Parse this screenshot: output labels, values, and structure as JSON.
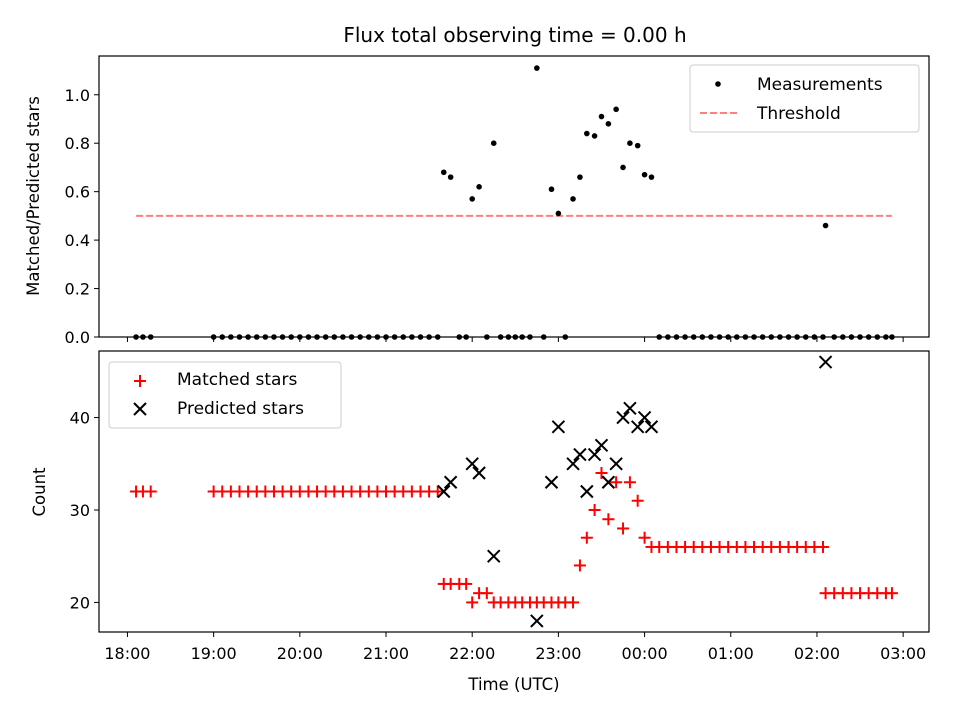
{
  "chart_data": [
    {
      "type": "scatter",
      "title": "Flux total observing time = 0.00 h",
      "ylabel": "Matched/Predicted stars",
      "xlabel": "",
      "ylim": [
        0,
        1.16
      ],
      "yticks": [
        0.0,
        0.2,
        0.4,
        0.6,
        0.8,
        1.0
      ],
      "ytick_labels": [
        "0.0",
        "0.2",
        "0.4",
        "0.6",
        "0.8",
        "1.0"
      ],
      "xlim_hours": [
        17.67,
        27.3
      ],
      "legend_position": "top-right",
      "grid": false,
      "series": [
        {
          "name": "Measurements",
          "kind": "dot",
          "color": "#000000",
          "points": [
            [
              18.1,
              0
            ],
            [
              18.18,
              0
            ],
            [
              18.27,
              0
            ],
            [
              19.0,
              0
            ],
            [
              19.1,
              0
            ],
            [
              19.2,
              0
            ],
            [
              19.3,
              0
            ],
            [
              19.4,
              0
            ],
            [
              19.5,
              0
            ],
            [
              19.6,
              0
            ],
            [
              19.7,
              0
            ],
            [
              19.8,
              0
            ],
            [
              19.9,
              0
            ],
            [
              20.0,
              0
            ],
            [
              20.1,
              0
            ],
            [
              20.2,
              0
            ],
            [
              20.3,
              0
            ],
            [
              20.4,
              0
            ],
            [
              20.5,
              0
            ],
            [
              20.6,
              0
            ],
            [
              20.7,
              0
            ],
            [
              20.8,
              0
            ],
            [
              20.9,
              0
            ],
            [
              21.0,
              0
            ],
            [
              21.1,
              0
            ],
            [
              21.2,
              0
            ],
            [
              21.3,
              0
            ],
            [
              21.4,
              0
            ],
            [
              21.5,
              0
            ],
            [
              21.6,
              0
            ],
            [
              21.67,
              0.68
            ],
            [
              21.75,
              0.66
            ],
            [
              21.85,
              0
            ],
            [
              21.93,
              0
            ],
            [
              22.0,
              0.57
            ],
            [
              22.08,
              0.62
            ],
            [
              22.17,
              0
            ],
            [
              22.25,
              0.8
            ],
            [
              22.33,
              0
            ],
            [
              22.42,
              0
            ],
            [
              22.5,
              0
            ],
            [
              22.58,
              0
            ],
            [
              22.67,
              0
            ],
            [
              22.75,
              1.11
            ],
            [
              22.83,
              0
            ],
            [
              22.92,
              0.61
            ],
            [
              23.0,
              0.51
            ],
            [
              23.08,
              0
            ],
            [
              23.17,
              0.57
            ],
            [
              23.25,
              0.66
            ],
            [
              23.33,
              0.84
            ],
            [
              23.42,
              0.83
            ],
            [
              23.5,
              0.91
            ],
            [
              23.58,
              0.88
            ],
            [
              23.67,
              0.94
            ],
            [
              23.75,
              0.7
            ],
            [
              23.83,
              0.8
            ],
            [
              23.92,
              0.79
            ],
            [
              24.0,
              0.67
            ],
            [
              24.08,
              0.66
            ],
            [
              24.17,
              0
            ],
            [
              24.27,
              0
            ],
            [
              24.37,
              0
            ],
            [
              24.47,
              0
            ],
            [
              24.57,
              0
            ],
            [
              24.67,
              0
            ],
            [
              24.77,
              0
            ],
            [
              24.87,
              0
            ],
            [
              24.97,
              0
            ],
            [
              25.07,
              0
            ],
            [
              25.17,
              0
            ],
            [
              25.27,
              0
            ],
            [
              25.37,
              0
            ],
            [
              25.47,
              0
            ],
            [
              25.57,
              0
            ],
            [
              25.67,
              0
            ],
            [
              25.77,
              0
            ],
            [
              25.87,
              0
            ],
            [
              25.97,
              0
            ],
            [
              26.07,
              0
            ],
            [
              26.1,
              0.46
            ],
            [
              26.2,
              0
            ],
            [
              26.3,
              0
            ],
            [
              26.4,
              0
            ],
            [
              26.5,
              0
            ],
            [
              26.6,
              0
            ],
            [
              26.7,
              0
            ],
            [
              26.8,
              0
            ],
            [
              26.87,
              0
            ]
          ]
        },
        {
          "name": "Threshold",
          "kind": "dashed-line",
          "color": "#ff7f7f",
          "points": [
            [
              18.1,
              0.5
            ],
            [
              26.87,
              0.5
            ]
          ]
        }
      ]
    },
    {
      "type": "scatter",
      "title": "",
      "ylabel": "Count",
      "xlabel": "Time (UTC)",
      "ylim": [
        16.8,
        47.2
      ],
      "yticks": [
        20,
        30,
        40
      ],
      "ytick_labels": [
        "20",
        "30",
        "40"
      ],
      "xlim_hours": [
        17.67,
        27.3
      ],
      "xticks_hours": [
        18,
        19,
        20,
        21,
        22,
        23,
        24,
        25,
        26,
        27
      ],
      "xtick_labels": [
        "18:00",
        "19:00",
        "20:00",
        "21:00",
        "22:00",
        "23:00",
        "00:00",
        "01:00",
        "02:00",
        "03:00"
      ],
      "legend_position": "top-left",
      "grid": false,
      "series": [
        {
          "name": "Matched stars",
          "kind": "plus",
          "color": "#ff0000",
          "points": [
            [
              18.1,
              32
            ],
            [
              18.18,
              32
            ],
            [
              18.27,
              32
            ],
            [
              19.0,
              32
            ],
            [
              19.1,
              32
            ],
            [
              19.2,
              32
            ],
            [
              19.3,
              32
            ],
            [
              19.4,
              32
            ],
            [
              19.5,
              32
            ],
            [
              19.6,
              32
            ],
            [
              19.7,
              32
            ],
            [
              19.8,
              32
            ],
            [
              19.9,
              32
            ],
            [
              20.0,
              32
            ],
            [
              20.1,
              32
            ],
            [
              20.2,
              32
            ],
            [
              20.3,
              32
            ],
            [
              20.4,
              32
            ],
            [
              20.5,
              32
            ],
            [
              20.6,
              32
            ],
            [
              20.7,
              32
            ],
            [
              20.8,
              32
            ],
            [
              20.9,
              32
            ],
            [
              21.0,
              32
            ],
            [
              21.1,
              32
            ],
            [
              21.2,
              32
            ],
            [
              21.3,
              32
            ],
            [
              21.4,
              32
            ],
            [
              21.5,
              32
            ],
            [
              21.6,
              32
            ],
            [
              21.67,
              22
            ],
            [
              21.75,
              22
            ],
            [
              21.85,
              22
            ],
            [
              21.93,
              22
            ],
            [
              22.0,
              20
            ],
            [
              22.08,
              21
            ],
            [
              22.17,
              21
            ],
            [
              22.25,
              20
            ],
            [
              22.33,
              20
            ],
            [
              22.42,
              20
            ],
            [
              22.5,
              20
            ],
            [
              22.58,
              20
            ],
            [
              22.67,
              20
            ],
            [
              22.75,
              20
            ],
            [
              22.83,
              20
            ],
            [
              22.92,
              20
            ],
            [
              23.0,
              20
            ],
            [
              23.08,
              20
            ],
            [
              23.17,
              20
            ],
            [
              23.25,
              24
            ],
            [
              23.33,
              27
            ],
            [
              23.42,
              30
            ],
            [
              23.5,
              34
            ],
            [
              23.58,
              29
            ],
            [
              23.67,
              33
            ],
            [
              23.75,
              28
            ],
            [
              23.83,
              33
            ],
            [
              23.92,
              31
            ],
            [
              24.0,
              27
            ],
            [
              24.08,
              26
            ],
            [
              24.17,
              26
            ],
            [
              24.27,
              26
            ],
            [
              24.37,
              26
            ],
            [
              24.47,
              26
            ],
            [
              24.57,
              26
            ],
            [
              24.67,
              26
            ],
            [
              24.77,
              26
            ],
            [
              24.87,
              26
            ],
            [
              24.97,
              26
            ],
            [
              25.07,
              26
            ],
            [
              25.17,
              26
            ],
            [
              25.27,
              26
            ],
            [
              25.37,
              26
            ],
            [
              25.47,
              26
            ],
            [
              25.57,
              26
            ],
            [
              25.67,
              26
            ],
            [
              25.77,
              26
            ],
            [
              25.87,
              26
            ],
            [
              25.97,
              26
            ],
            [
              26.07,
              26
            ],
            [
              26.1,
              21
            ],
            [
              26.2,
              21
            ],
            [
              26.3,
              21
            ],
            [
              26.4,
              21
            ],
            [
              26.5,
              21
            ],
            [
              26.6,
              21
            ],
            [
              26.7,
              21
            ],
            [
              26.8,
              21
            ],
            [
              26.87,
              21
            ]
          ]
        },
        {
          "name": "Predicted stars",
          "kind": "x",
          "color": "#000000",
          "points": [
            [
              21.67,
              32
            ],
            [
              21.75,
              33
            ],
            [
              22.0,
              35
            ],
            [
              22.08,
              34
            ],
            [
              22.25,
              25
            ],
            [
              22.75,
              18
            ],
            [
              22.92,
              33
            ],
            [
              23.0,
              39
            ],
            [
              23.17,
              35
            ],
            [
              23.25,
              36
            ],
            [
              23.33,
              32
            ],
            [
              23.42,
              36
            ],
            [
              23.5,
              37
            ],
            [
              23.58,
              33
            ],
            [
              23.67,
              35
            ],
            [
              23.75,
              40
            ],
            [
              23.83,
              41
            ],
            [
              23.92,
              39
            ],
            [
              24.0,
              40
            ],
            [
              24.08,
              39
            ],
            [
              26.1,
              46
            ]
          ]
        }
      ]
    }
  ]
}
